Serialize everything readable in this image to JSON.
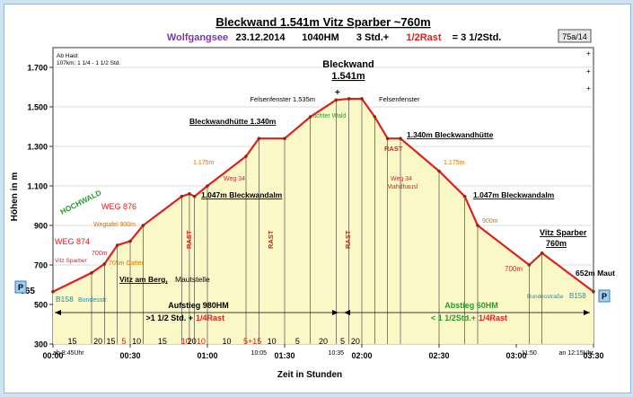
{
  "header": {
    "title": "Bleckwand 1.541m Vitz Sparber ~760m",
    "region": "Wolfgangsee",
    "date": "23.12.2014",
    "hm": "1040HM",
    "time_a": "3 Std.+",
    "time_rest": "1/2Rast",
    "time_b": "= 3 1/2Std.",
    "tour_id": "75a/14",
    "region_color": "#7a3aa6",
    "rest_color": "#e02020"
  },
  "note": {
    "line1": "Ab Haid:",
    "line2": "107km; 1 1/4 - 1 1/2 Std."
  },
  "summary": {
    "ascent_title": "Aufstieg 980HM",
    "ascent_time": ">1 1/2 Std. +",
    "ascent_rest": "1/4Rast",
    "descent_title": "Abstieg 60HM",
    "descent_time": "< 1 1/2Std.+",
    "descent_rest": "1/4Rast"
  },
  "parking": {
    "left": "P",
    "right": "P"
  },
  "extra_ticks": {
    "top_left": "565",
    "top_right": ""
  },
  "time_marks": [
    {
      "label": "ab 8:45Uhr",
      "x": 0
    },
    {
      "label": "10:05",
      "x": 80
    },
    {
      "label": "10:35",
      "x": 110
    },
    {
      "label": "11:50",
      "x": 185
    },
    {
      "label": "an 12:15Uhr",
      "x": 210
    }
  ],
  "segments": [
    {
      "label": "15",
      "mid": 0,
      "red": false
    },
    {
      "label": "20",
      "mid": 1,
      "red": false
    },
    {
      "label": "15",
      "mid": 2,
      "red": false
    },
    {
      "label": "5",
      "mid": 3,
      "red": true
    },
    {
      "label": "10",
      "mid": 4,
      "red": false
    },
    {
      "label": "15",
      "mid": 5,
      "red": false
    },
    {
      "label": "10",
      "mid": 6,
      "red": true
    },
    {
      "label": "20",
      "mid": 7,
      "red": false
    },
    {
      "label": "10",
      "mid": 8,
      "red": true
    },
    {
      "label": "10",
      "mid": 9,
      "red": false
    },
    {
      "label": "5+15",
      "mid": 10,
      "red": true
    },
    {
      "label": "10",
      "mid": 11,
      "red": false
    },
    {
      "label": "5",
      "mid": 12,
      "red": false
    },
    {
      "label": "20",
      "mid": 13,
      "red": false
    },
    {
      "label": "5",
      "mid": 14,
      "red": false
    },
    {
      "label": "20",
      "mid": 15,
      "red": false
    }
  ],
  "annotations": [
    {
      "text": "Bleckwand",
      "kind": "peak"
    },
    {
      "text": "1.541m",
      "kind": "peak"
    },
    {
      "text": "Felsenfenster 1.535m",
      "kind": "black"
    },
    {
      "text": "Felsenfenster",
      "kind": "black"
    },
    {
      "text": "lichter Wald",
      "kind": "green"
    },
    {
      "text": "Bleckwandhütte 1.340m",
      "kind": "black-bold-u"
    },
    {
      "text": "1.340m Bleckwandhütte",
      "kind": "black-bold-u"
    },
    {
      "text": "1.175m",
      "kind": "orange"
    },
    {
      "text": "Weg 34",
      "kind": "darkred"
    },
    {
      "text": "1.047m Bleckwandalm",
      "kind": "black-bold-u"
    },
    {
      "text": "WEG 876",
      "kind": "red"
    },
    {
      "text": "WEG 874",
      "kind": "red"
    },
    {
      "text": "Wegtafel 900m",
      "kind": "orange"
    },
    {
      "text": "Vitz Sparber",
      "kind": "darkred"
    },
    {
      "text": "700m",
      "kind": "darkred"
    },
    {
      "text": "705m Gatter",
      "kind": "orange"
    },
    {
      "text": "Vitz am Berg,",
      "kind": "black-bold-u"
    },
    {
      "text": "Mautstelle",
      "kind": "black"
    },
    {
      "text": "B158",
      "kind": "teal"
    },
    {
      "text": "Bundesstr.",
      "kind": "teal"
    },
    {
      "text": "HOCHWALD",
      "kind": "green-bold"
    },
    {
      "text": "RAST",
      "kind": "red-bold"
    },
    {
      "text": "Weg 34",
      "kind": "darkred"
    },
    {
      "text": "Mahdhausl",
      "kind": "darkred"
    },
    {
      "text": "900m",
      "kind": "orange"
    },
    {
      "text": "Vitz Sparber",
      "kind": "black-bold-u"
    },
    {
      "text": "760m",
      "kind": "black-bold-u"
    },
    {
      "text": "700m",
      "kind": "darkred"
    },
    {
      "text": "652m Maut",
      "kind": "black-bold"
    },
    {
      "text": "Bundesstraße",
      "kind": "teal"
    },
    {
      "text": "B158",
      "kind": "teal"
    },
    {
      "text": "+",
      "kind": "black"
    }
  ],
  "chart_data": {
    "type": "area",
    "title": "Bleckwand 1.541m Vitz Sparber ~760m",
    "xlabel": "Zeit in Stunden",
    "ylabel": "Höhen in m",
    "x_unit": "minutes",
    "xlim": [
      0,
      210
    ],
    "ylim": [
      300,
      1800
    ],
    "x_ticks": [
      "00:00",
      "00:30",
      "01:00",
      "01:30",
      "02:00",
      "02:30",
      "03:00",
      "03:30"
    ],
    "y_ticks": [
      "1.700",
      "1.500",
      "1.300",
      "1.100",
      "900",
      "700",
      "500",
      "300"
    ],
    "y_tick_values": [
      1700,
      1500,
      1300,
      1100,
      900,
      700,
      500,
      300
    ],
    "grid": true,
    "fill_color": "#fbf8c8",
    "line_color": "#e02020",
    "series": [
      {
        "x": [
          0,
          15,
          20,
          25,
          30,
          35,
          50,
          53,
          55,
          60,
          75,
          80,
          90,
          100,
          110,
          115,
          120,
          125,
          130,
          135,
          150,
          160,
          165,
          185,
          190,
          210
        ],
        "y": [
          565,
          660,
          705,
          800,
          820,
          900,
          1047,
          1060,
          1047,
          1100,
          1250,
          1340,
          1340,
          1450,
          1535,
          1541,
          1541,
          1450,
          1340,
          1340,
          1175,
          1047,
          900,
          700,
          760,
          565
        ]
      }
    ]
  }
}
